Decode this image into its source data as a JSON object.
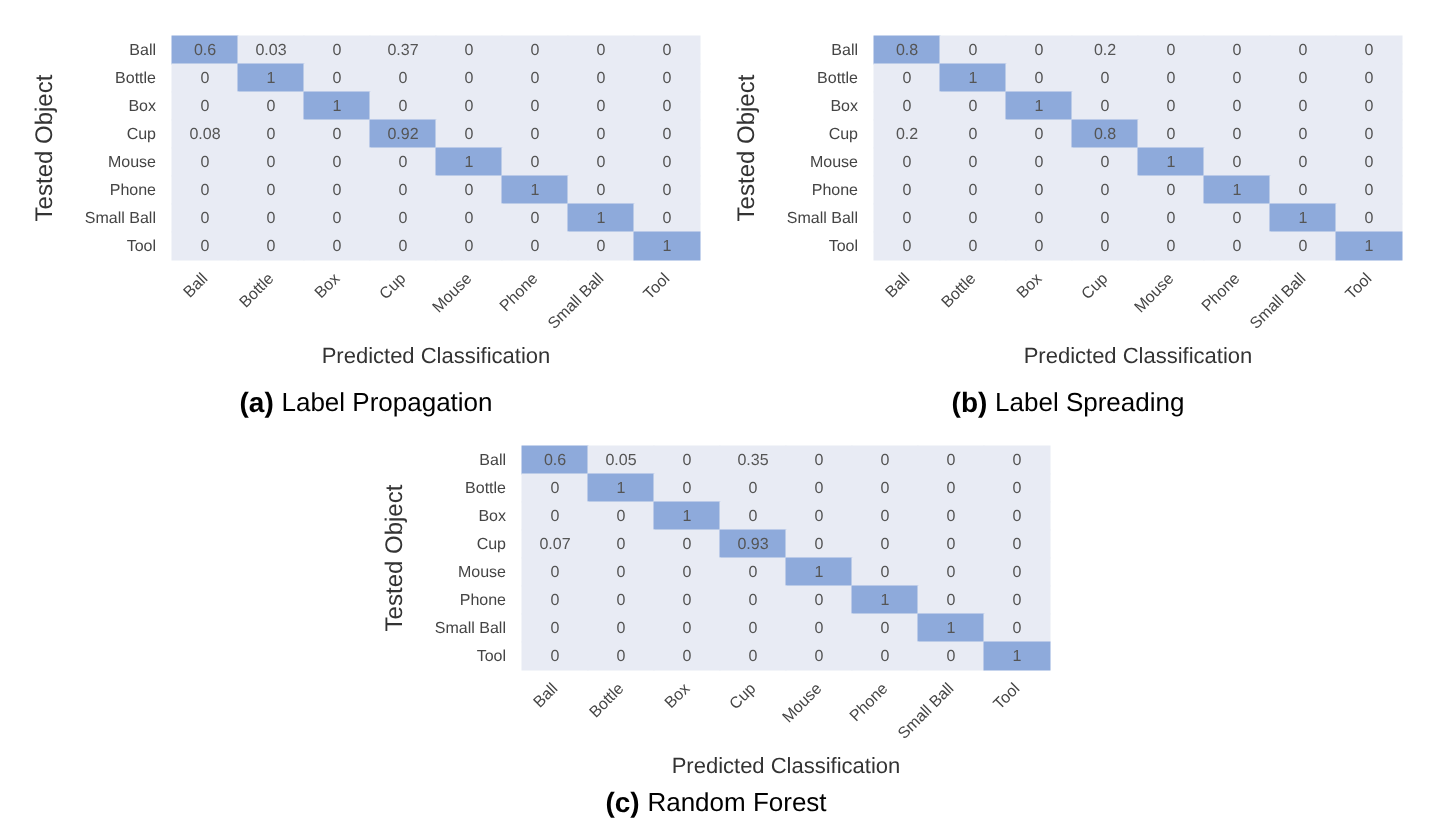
{
  "chart_data": [
    {
      "type": "heatmap",
      "title": "(a) Label Propagation",
      "xlabel": "Predicted Classification",
      "ylabel": "Tested Object",
      "categories": [
        "Ball",
        "Bottle",
        "Box",
        "Cup",
        "Mouse",
        "Phone",
        "Small Ball",
        "Tool"
      ],
      "y_categories": [
        "Ball",
        "Bottle",
        "Box",
        "Cup",
        "Mouse",
        "Phone",
        "Small Ball",
        "Tool"
      ],
      "colors": [
        "#e8ebf4",
        "#8eaadb"
      ],
      "data_labels": true,
      "cells": [
        [
          0.6,
          0.03,
          0,
          0.37,
          0,
          0,
          0,
          0
        ],
        [
          0,
          1,
          0,
          0,
          0,
          0,
          0,
          0
        ],
        [
          0,
          0,
          1,
          0,
          0,
          0,
          0,
          0
        ],
        [
          0.08,
          0,
          0,
          0.92,
          0,
          0,
          0,
          0
        ],
        [
          0,
          0,
          0,
          0,
          1,
          0,
          0,
          0
        ],
        [
          0,
          0,
          0,
          0,
          0,
          1,
          0,
          0
        ],
        [
          0,
          0,
          0,
          0,
          0,
          0,
          1,
          0
        ],
        [
          0,
          0,
          0,
          0,
          0,
          0,
          0,
          1
        ]
      ]
    },
    {
      "type": "heatmap",
      "title": "(b) Label Spreading",
      "xlabel": "Predicted Classification",
      "ylabel": "Tested Object",
      "categories": [
        "Ball",
        "Bottle",
        "Box",
        "Cup",
        "Mouse",
        "Phone",
        "Small Ball",
        "Tool"
      ],
      "y_categories": [
        "Ball",
        "Bottle",
        "Box",
        "Cup",
        "Mouse",
        "Phone",
        "Small Ball",
        "Tool"
      ],
      "colors": [
        "#e8ebf4",
        "#8eaadb"
      ],
      "data_labels": true,
      "cells": [
        [
          0.8,
          0,
          0,
          0.2,
          0,
          0,
          0,
          0
        ],
        [
          0,
          1,
          0,
          0,
          0,
          0,
          0,
          0
        ],
        [
          0,
          0,
          1,
          0,
          0,
          0,
          0,
          0
        ],
        [
          0.2,
          0,
          0,
          0.8,
          0,
          0,
          0,
          0
        ],
        [
          0,
          0,
          0,
          0,
          1,
          0,
          0,
          0
        ],
        [
          0,
          0,
          0,
          0,
          0,
          1,
          0,
          0
        ],
        [
          0,
          0,
          0,
          0,
          0,
          0,
          1,
          0
        ],
        [
          0,
          0,
          0,
          0,
          0,
          0,
          0,
          1
        ]
      ]
    },
    {
      "type": "heatmap",
      "title": "(c) Random Forest",
      "xlabel": "Predicted Classification",
      "ylabel": "Tested Object",
      "categories": [
        "Ball",
        "Bottle",
        "Box",
        "Cup",
        "Mouse",
        "Phone",
        "Small Ball",
        "Tool"
      ],
      "y_categories": [
        "Ball",
        "Bottle",
        "Box",
        "Cup",
        "Mouse",
        "Phone",
        "Small Ball",
        "Tool"
      ],
      "colors": [
        "#e8ebf4",
        "#8eaadb"
      ],
      "data_labels": true,
      "cells": [
        [
          0.6,
          0.05,
          0,
          0.35,
          0,
          0,
          0,
          0
        ],
        [
          0,
          1,
          0,
          0,
          0,
          0,
          0,
          0
        ],
        [
          0,
          0,
          1,
          0,
          0,
          0,
          0,
          0
        ],
        [
          0.07,
          0,
          0,
          0.93,
          0,
          0,
          0,
          0
        ],
        [
          0,
          0,
          0,
          0,
          1,
          0,
          0,
          0
        ],
        [
          0,
          0,
          0,
          0,
          0,
          1,
          0,
          0
        ],
        [
          0,
          0,
          0,
          0,
          0,
          0,
          1,
          0
        ],
        [
          0,
          0,
          0,
          0,
          0,
          0,
          0,
          1
        ]
      ]
    }
  ]
}
